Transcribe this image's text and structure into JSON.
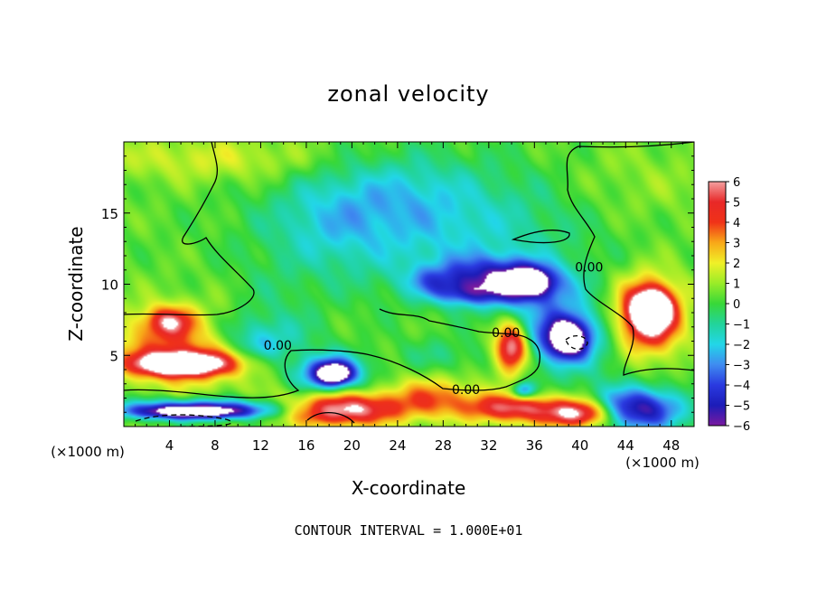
{
  "chart_data": {
    "type": "heatmap",
    "title": "zonal velocity",
    "xlabel": "X-coordinate",
    "ylabel": "Z-coordinate",
    "x_unit_left": "(×1000 m)",
    "x_unit_right": "(×1000 m)",
    "footer": "CONTOUR INTERVAL = 1.000E+01",
    "xlim": [
      0,
      50
    ],
    "ylim": [
      0,
      20
    ],
    "x_ticks": [
      4,
      8,
      12,
      16,
      20,
      24,
      28,
      32,
      36,
      40,
      44,
      48
    ],
    "y_ticks": [
      5,
      10,
      15
    ],
    "colorbar": {
      "range": [
        -6,
        6
      ],
      "labels": [
        "6",
        "5",
        "4",
        "3",
        "2",
        "1",
        "0",
        "−1",
        "−2",
        "−3",
        "−4",
        "−5",
        "−6"
      ],
      "stops": [
        {
          "v": -6.0,
          "color": "#7a1aa0"
        },
        {
          "v": -5.0,
          "color": "#1c1cb8"
        },
        {
          "v": -4.0,
          "color": "#2a3ae0"
        },
        {
          "v": -3.0,
          "color": "#3f8cf0"
        },
        {
          "v": -2.0,
          "color": "#22d6e8"
        },
        {
          "v": -1.0,
          "color": "#22d49a"
        },
        {
          "v": 0.0,
          "color": "#38d838"
        },
        {
          "v": 1.0,
          "color": "#9aec28"
        },
        {
          "v": 2.0,
          "color": "#f0f028"
        },
        {
          "v": 3.0,
          "color": "#f8a818"
        },
        {
          "v": 4.0,
          "color": "#f03218"
        },
        {
          "v": 5.0,
          "color": "#e82828"
        },
        {
          "v": 6.0,
          "color": "#f4a0a0"
        }
      ]
    },
    "contour_labels": [
      {
        "text": "0.00",
        "x": 13.5,
        "z": 5.7
      },
      {
        "text": "0.00",
        "x": 33.5,
        "z": 6.6
      },
      {
        "text": "0.00",
        "x": 30.0,
        "z": 2.6
      },
      {
        "text": "0.00",
        "x": 40.8,
        "z": 11.2
      }
    ],
    "features": [
      {
        "x": 27,
        "z": 14,
        "sx": 13,
        "sz": 4.5,
        "v": -2.2
      },
      {
        "x": 24,
        "z": 16.5,
        "sx": 6,
        "sz": 2.5,
        "v": -1.0
      },
      {
        "x": 18,
        "z": 14.5,
        "sx": 5,
        "sz": 3,
        "v": -1.2
      },
      {
        "x": 31,
        "z": 10.5,
        "sx": 4,
        "sz": 1.5,
        "v": -3.0
      },
      {
        "x": 27,
        "z": 10.2,
        "sx": 2.5,
        "sz": 1.0,
        "v": -2.0
      },
      {
        "x": 35,
        "z": 10.0,
        "sx": 4,
        "sz": 1.6,
        "v": -4.5
      },
      {
        "x": 35.5,
        "z": 10.2,
        "sx": 1.8,
        "sz": 0.9,
        "v": -6.0
      },
      {
        "x": 30,
        "z": 9.3,
        "sx": 3,
        "sz": 0.8,
        "v": -2.5
      },
      {
        "x": 18,
        "z": 3.8,
        "sx": 3.0,
        "sz": 1.3,
        "v": -5.0
      },
      {
        "x": 18.5,
        "z": 3.7,
        "sx": 1.4,
        "sz": 0.7,
        "v": -6.0
      },
      {
        "x": 11,
        "z": 6.5,
        "sx": 5,
        "sz": 1.5,
        "v": -2.0
      },
      {
        "x": 12,
        "z": 5.6,
        "sx": 2.5,
        "sz": 1.0,
        "v": -1.5
      },
      {
        "x": 38,
        "z": 6.5,
        "sx": 3.0,
        "sz": 2.3,
        "v": -4.0
      },
      {
        "x": 39,
        "z": 6.2,
        "sx": 1.6,
        "sz": 1.2,
        "v": -6.5
      },
      {
        "x": 35,
        "z": 2.5,
        "sx": 1.0,
        "sz": 0.6,
        "v": -4.0
      },
      {
        "x": 28,
        "z": 5.0,
        "sx": 4,
        "sz": 1.2,
        "v": -1.0
      },
      {
        "x": 45,
        "z": 1.2,
        "sx": 4,
        "sz": 1.5,
        "v": -6.0
      },
      {
        "x": 7,
        "z": 1.3,
        "sx": 9,
        "sz": 0.7,
        "v": -4.0
      },
      {
        "x": 6,
        "z": 1.0,
        "sx": 5,
        "sz": 0.5,
        "v": -6.0
      },
      {
        "x": 5,
        "z": 5.5,
        "sx": 6,
        "sz": 2.6,
        "v": 3.5
      },
      {
        "x": 5,
        "z": 4.4,
        "sx": 4,
        "sz": 0.8,
        "v": 8.0
      },
      {
        "x": 4,
        "z": 7.4,
        "sx": 2,
        "sz": 1.0,
        "v": 4.0
      },
      {
        "x": 46,
        "z": 7.8,
        "sx": 2.8,
        "sz": 2.5,
        "v": 6.5
      },
      {
        "x": 46.3,
        "z": 8.2,
        "sx": 1.5,
        "sz": 1.2,
        "v": 8.0
      },
      {
        "x": 34,
        "z": 5.5,
        "sx": 1.4,
        "sz": 1.6,
        "v": 6.5
      },
      {
        "x": 19,
        "z": 1.2,
        "sx": 5,
        "sz": 1.1,
        "v": 6.5
      },
      {
        "x": 34,
        "z": 1.3,
        "sx": 4,
        "sz": 1.0,
        "v": 5.0
      },
      {
        "x": 27,
        "z": 2.0,
        "sx": 4,
        "sz": 1.4,
        "v": 3.0
      },
      {
        "x": 40,
        "z": 0.9,
        "sx": 3,
        "sz": 1.0,
        "v": 6.5
      },
      {
        "x": 8,
        "z": 18.8,
        "sx": 10,
        "sz": 1.6,
        "v": 1.3
      },
      {
        "x": 45,
        "z": 17,
        "sx": 7,
        "sz": 3,
        "v": 0.6
      },
      {
        "x": 41,
        "z": 6.0,
        "sx": 3.5,
        "sz": 3,
        "v": -1.2
      },
      {
        "x": 13,
        "z": 8.5,
        "sx": 4,
        "sz": 3,
        "v": -0.6
      }
    ]
  }
}
